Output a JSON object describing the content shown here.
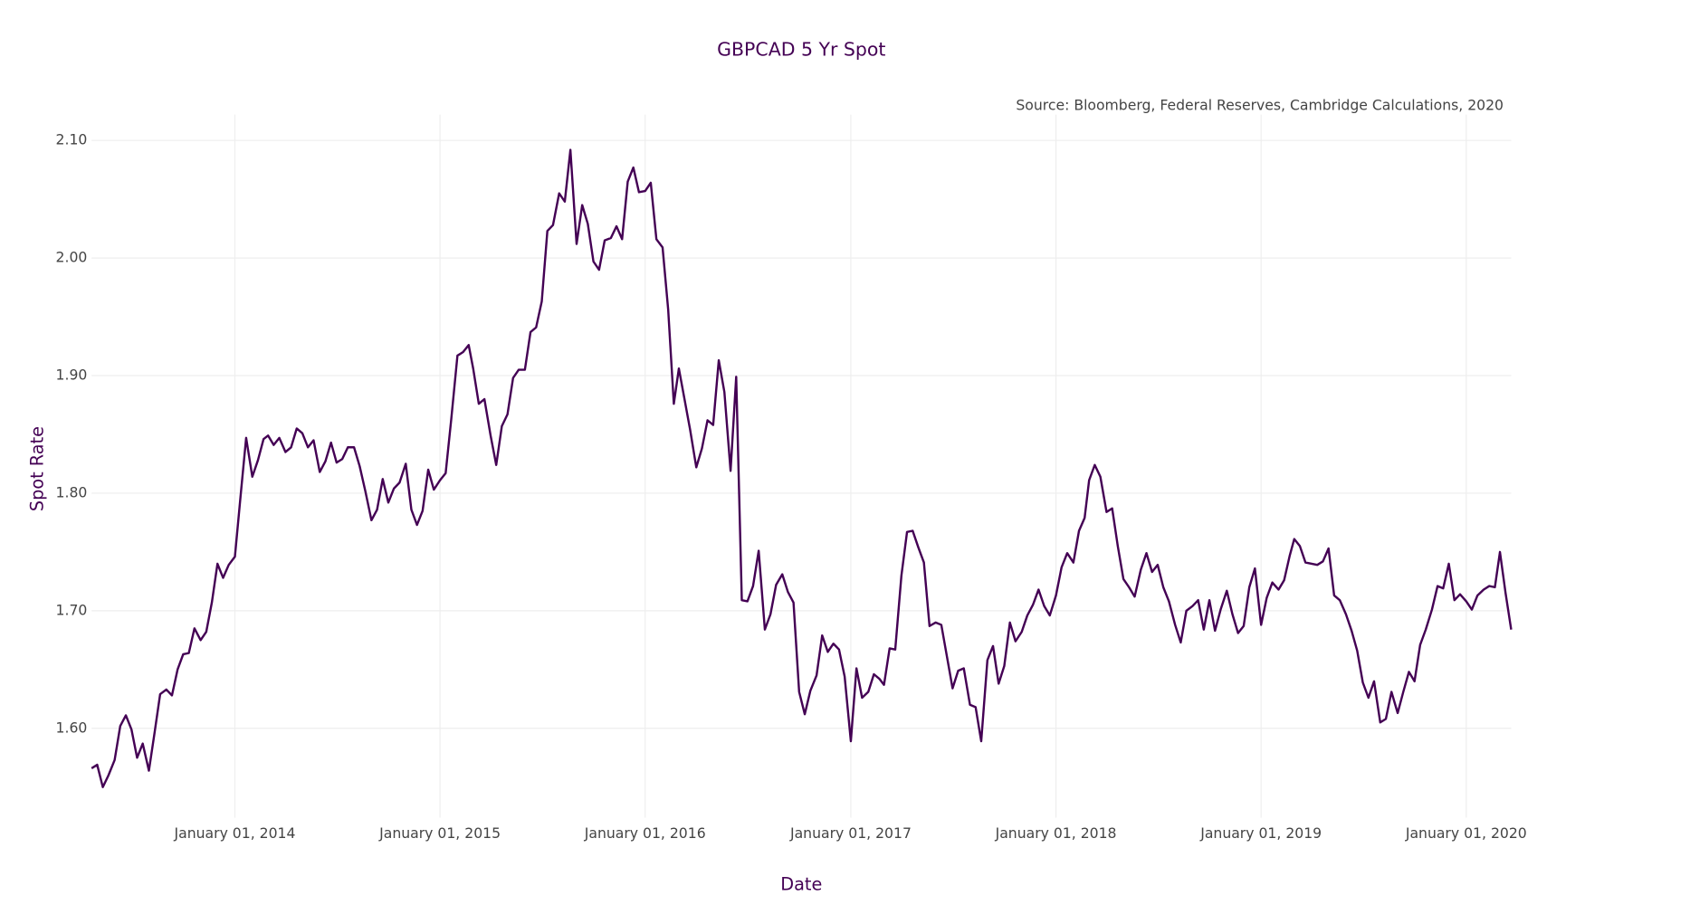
{
  "chart_data": {
    "type": "line",
    "title": "GBPCAD 5 Yr Spot",
    "annotation": "Source: Bloomberg, Federal Reserves, Cambridge Calculations, 2020",
    "x_label": "Date",
    "y_label": "Spot Rate",
    "color": "#440154",
    "grid": true,
    "xlim": [
      "2013-04-21",
      "2020-03-21"
    ],
    "ylim": [
      1.524,
      2.122
    ],
    "xticks": [
      {
        "value": "2014-01-01",
        "label": "January 01, 2014"
      },
      {
        "value": "2015-01-01",
        "label": "January 01, 2015"
      },
      {
        "value": "2016-01-01",
        "label": "January 01, 2016"
      },
      {
        "value": "2017-01-01",
        "label": "January 01, 2017"
      },
      {
        "value": "2018-01-01",
        "label": "January 01, 2018"
      },
      {
        "value": "2019-01-01",
        "label": "January 01, 2019"
      },
      {
        "value": "2020-01-01",
        "label": "January 01, 2020"
      }
    ],
    "yticks": [
      {
        "value": 1.6,
        "label": "1.60"
      },
      {
        "value": 1.7,
        "label": "1.70"
      },
      {
        "value": 1.8,
        "label": "1.80"
      },
      {
        "value": 1.9,
        "label": "1.90"
      },
      {
        "value": 2.0,
        "label": "2.00"
      },
      {
        "value": 2.1,
        "label": "2.10"
      }
    ],
    "x": [
      "2013-04-21",
      "2013-05-01",
      "2013-05-11",
      "2013-05-21",
      "2013-06-01",
      "2013-06-11",
      "2013-06-21",
      "2013-07-01",
      "2013-07-11",
      "2013-07-21",
      "2013-08-01",
      "2013-08-11",
      "2013-08-21",
      "2013-09-01",
      "2013-09-11",
      "2013-09-21",
      "2013-10-01",
      "2013-10-11",
      "2013-10-21",
      "2013-11-01",
      "2013-11-11",
      "2013-11-21",
      "2013-12-01",
      "2013-12-11",
      "2013-12-21",
      "2014-01-01",
      "2014-01-11",
      "2014-01-21",
      "2014-02-01",
      "2014-02-11",
      "2014-02-21",
      "2014-03-01",
      "2014-03-11",
      "2014-03-21",
      "2014-04-01",
      "2014-04-11",
      "2014-04-21",
      "2014-05-01",
      "2014-05-11",
      "2014-05-21",
      "2014-06-01",
      "2014-06-11",
      "2014-06-21",
      "2014-07-01",
      "2014-07-11",
      "2014-07-21",
      "2014-08-01",
      "2014-08-11",
      "2014-08-21",
      "2014-09-01",
      "2014-09-11",
      "2014-09-21",
      "2014-10-01",
      "2014-10-11",
      "2014-10-21",
      "2014-11-01",
      "2014-11-11",
      "2014-11-21",
      "2014-12-01",
      "2014-12-11",
      "2014-12-21",
      "2015-01-01",
      "2015-01-11",
      "2015-01-21",
      "2015-02-01",
      "2015-02-11",
      "2015-02-21",
      "2015-03-01",
      "2015-03-11",
      "2015-03-21",
      "2015-04-01",
      "2015-04-11",
      "2015-04-21",
      "2015-05-01",
      "2015-05-11",
      "2015-05-21",
      "2015-06-01",
      "2015-06-11",
      "2015-06-21",
      "2015-07-01",
      "2015-07-11",
      "2015-07-21",
      "2015-08-01",
      "2015-08-11",
      "2015-08-21",
      "2015-09-01",
      "2015-09-11",
      "2015-09-21",
      "2015-10-01",
      "2015-10-11",
      "2015-10-21",
      "2015-11-01",
      "2015-11-11",
      "2015-11-21",
      "2015-12-01",
      "2015-12-11",
      "2015-12-21",
      "2016-01-01",
      "2016-01-11",
      "2016-01-21",
      "2016-02-01",
      "2016-02-11",
      "2016-02-21",
      "2016-03-01",
      "2016-03-11",
      "2016-03-21",
      "2016-04-01",
      "2016-04-11",
      "2016-04-21",
      "2016-05-01",
      "2016-05-11",
      "2016-05-21",
      "2016-06-01",
      "2016-06-11",
      "2016-06-21",
      "2016-07-01",
      "2016-07-11",
      "2016-07-21",
      "2016-08-01",
      "2016-08-11",
      "2016-08-21",
      "2016-09-01",
      "2016-09-11",
      "2016-09-21",
      "2016-10-01",
      "2016-10-11",
      "2016-10-21",
      "2016-11-01",
      "2016-11-11",
      "2016-11-21",
      "2016-12-01",
      "2016-12-11",
      "2016-12-21",
      "2017-01-01",
      "2017-01-11",
      "2017-01-21",
      "2017-02-01",
      "2017-02-11",
      "2017-02-21",
      "2017-03-01",
      "2017-03-11",
      "2017-03-21",
      "2017-04-01",
      "2017-04-11",
      "2017-04-21",
      "2017-05-01",
      "2017-05-11",
      "2017-05-21",
      "2017-06-01",
      "2017-06-11",
      "2017-06-21",
      "2017-07-01",
      "2017-07-11",
      "2017-07-21",
      "2017-08-01",
      "2017-08-11",
      "2017-08-21",
      "2017-09-01",
      "2017-09-11",
      "2017-09-21",
      "2017-10-01",
      "2017-10-11",
      "2017-10-21",
      "2017-11-01",
      "2017-11-11",
      "2017-11-21",
      "2017-12-01",
      "2017-12-11",
      "2017-12-21",
      "2018-01-01",
      "2018-01-11",
      "2018-01-21",
      "2018-02-01",
      "2018-02-11",
      "2018-02-21",
      "2018-03-01",
      "2018-03-11",
      "2018-03-21",
      "2018-04-01",
      "2018-04-11",
      "2018-04-21",
      "2018-05-01",
      "2018-05-11",
      "2018-05-21",
      "2018-06-01",
      "2018-06-11",
      "2018-06-21",
      "2018-07-01",
      "2018-07-11",
      "2018-07-21",
      "2018-08-01",
      "2018-08-11",
      "2018-08-21",
      "2018-09-01",
      "2018-09-11",
      "2018-09-21",
      "2018-10-01",
      "2018-10-11",
      "2018-10-21",
      "2018-11-01",
      "2018-11-11",
      "2018-11-21",
      "2018-12-01",
      "2018-12-11",
      "2018-12-21",
      "2019-01-01",
      "2019-01-11",
      "2019-01-21",
      "2019-02-01",
      "2019-02-11",
      "2019-02-21",
      "2019-03-01",
      "2019-03-11",
      "2019-03-21",
      "2019-04-01",
      "2019-04-11",
      "2019-04-21",
      "2019-05-01",
      "2019-05-11",
      "2019-05-21",
      "2019-06-01",
      "2019-06-11",
      "2019-06-21",
      "2019-07-01",
      "2019-07-11",
      "2019-07-21",
      "2019-08-01",
      "2019-08-11",
      "2019-08-21",
      "2019-09-01",
      "2019-09-11",
      "2019-09-21",
      "2019-10-01",
      "2019-10-11",
      "2019-10-21",
      "2019-11-01",
      "2019-11-11",
      "2019-11-21",
      "2019-12-01",
      "2019-12-11",
      "2019-12-21",
      "2020-01-01",
      "2020-01-11",
      "2020-01-21",
      "2020-02-01",
      "2020-02-11",
      "2020-02-21",
      "2020-03-01",
      "2020-03-11",
      "2020-03-21"
    ],
    "values": [
      1.566,
      1.569,
      1.55,
      1.56,
      1.573,
      1.602,
      1.611,
      1.599,
      1.575,
      1.587,
      1.564,
      1.596,
      1.629,
      1.633,
      1.628,
      1.65,
      1.663,
      1.664,
      1.685,
      1.675,
      1.682,
      1.707,
      1.74,
      1.728,
      1.739,
      1.746,
      1.797,
      1.847,
      1.814,
      1.828,
      1.846,
      1.849,
      1.841,
      1.847,
      1.835,
      1.839,
      1.855,
      1.851,
      1.839,
      1.845,
      1.818,
      1.827,
      1.843,
      1.826,
      1.829,
      1.839,
      1.839,
      1.823,
      1.802,
      1.777,
      1.786,
      1.812,
      1.792,
      1.804,
      1.809,
      1.825,
      1.786,
      1.773,
      1.785,
      1.82,
      1.803,
      1.811,
      1.817,
      1.863,
      1.917,
      1.92,
      1.926,
      1.906,
      1.876,
      1.88,
      1.849,
      1.824,
      1.857,
      1.867,
      1.898,
      1.905,
      1.905,
      1.937,
      1.941,
      1.963,
      2.023,
      2.028,
      2.055,
      2.048,
      2.092,
      2.012,
      2.045,
      2.029,
      1.997,
      1.99,
      2.015,
      2.017,
      2.027,
      2.016,
      2.065,
      2.077,
      2.056,
      2.057,
      2.064,
      2.016,
      2.009,
      1.956,
      1.876,
      1.906,
      1.88,
      1.854,
      1.822,
      1.838,
      1.862,
      1.858,
      1.913,
      1.886,
      1.819,
      1.899,
      1.709,
      1.708,
      1.721,
      1.751,
      1.684,
      1.697,
      1.722,
      1.731,
      1.716,
      1.707,
      1.631,
      1.612,
      1.632,
      1.645,
      1.679,
      1.665,
      1.672,
      1.667,
      1.644,
      1.589,
      1.651,
      1.626,
      1.631,
      1.646,
      1.642,
      1.637,
      1.668,
      1.667,
      1.73,
      1.767,
      1.768,
      1.754,
      1.741,
      1.687,
      1.69,
      1.688,
      1.661,
      1.634,
      1.649,
      1.651,
      1.62,
      1.618,
      1.589,
      1.658,
      1.67,
      1.638,
      1.653,
      1.69,
      1.674,
      1.682,
      1.696,
      1.705,
      1.718,
      1.704,
      1.696,
      1.713,
      1.737,
      1.749,
      1.741,
      1.768,
      1.779,
      1.811,
      1.824,
      1.814,
      1.784,
      1.787,
      1.755,
      1.727,
      1.72,
      1.712,
      1.735,
      1.749,
      1.733,
      1.739,
      1.72,
      1.708,
      1.688,
      1.673,
      1.7,
      1.704,
      1.709,
      1.684,
      1.709,
      1.683,
      1.701,
      1.717,
      1.697,
      1.681,
      1.687,
      1.72,
      1.736,
      1.688,
      1.711,
      1.724,
      1.718,
      1.726,
      1.747,
      1.761,
      1.755,
      1.741,
      1.74,
      1.739,
      1.742,
      1.753,
      1.713,
      1.709,
      1.697,
      1.683,
      1.666,
      1.639,
      1.626,
      1.64,
      1.605,
      1.608,
      1.631,
      1.613,
      1.631,
      1.648,
      1.64,
      1.671,
      1.684,
      1.701,
      1.721,
      1.719,
      1.74,
      1.709,
      1.714,
      1.708,
      1.701,
      1.713,
      1.718,
      1.721,
      1.72,
      1.75,
      1.715,
      1.684
    ]
  }
}
